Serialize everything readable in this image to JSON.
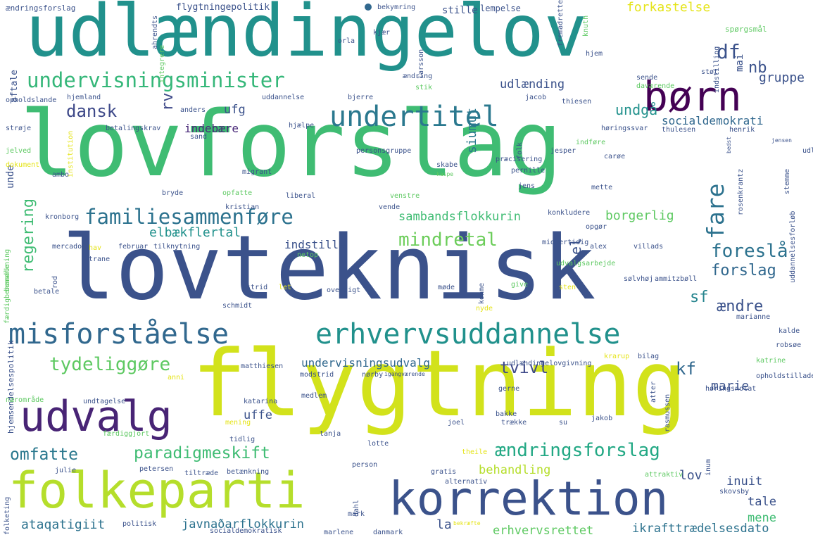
{
  "palette": [
    "#440154",
    "#3b528b",
    "#21918c",
    "#5ec962",
    "#fde725"
  ],
  "words": [
    {
      "text": "udlændingelov",
      "color": "#21918c"
    },
    {
      "text": "lovforslag",
      "color": "#3fbc73"
    },
    {
      "text": "lovteknisk",
      "color": "#3b528b"
    },
    {
      "text": "flygtning",
      "color": "#d2e21b"
    },
    {
      "text": "børn",
      "color": "#440154"
    },
    {
      "text": "korrektion",
      "color": "#3b528b"
    },
    {
      "text": "folkeparti",
      "color": "#b5de2b"
    },
    {
      "text": "udvalg",
      "color": "#482475"
    },
    {
      "text": "misforståelse",
      "color": "#31688e"
    },
    {
      "text": "erhvervsuddannelse",
      "color": "#21918c"
    },
    {
      "text": "undervisningsminister",
      "color": "#35b779"
    },
    {
      "text": "undertitel",
      "color": "#2a788e"
    },
    {
      "text": "familiesammenføre",
      "color": "#2c728e"
    },
    {
      "text": "fare",
      "color": "#2c728e"
    },
    {
      "text": "dansk",
      "color": "#3e4989"
    },
    {
      "text": "undgå",
      "color": "#21918c"
    },
    {
      "text": "df",
      "color": "#3b528b"
    },
    {
      "text": "nb",
      "color": "#3b528b"
    },
    {
      "text": "mindretal",
      "color": "#6ccd5a"
    },
    {
      "text": "foreslå",
      "color": "#2c728e"
    },
    {
      "text": "forslag",
      "color": "#31688e"
    },
    {
      "text": "tydeliggøre",
      "color": "#5ec962"
    },
    {
      "text": "paradigmeskift",
      "color": "#3fbc73"
    },
    {
      "text": "ændringsforslag",
      "color": "#22a884"
    },
    {
      "text": "omfatte",
      "color": "#2a788e"
    },
    {
      "text": "tvivl",
      "color": "#3e4989"
    },
    {
      "text": "kf",
      "color": "#31688e"
    },
    {
      "text": "sf",
      "color": "#25848e"
    },
    {
      "text": "ændre",
      "color": "#3b528b"
    },
    {
      "text": "regering",
      "color": "#3fbc73"
    },
    {
      "text": "rv",
      "color": "#3e4989"
    },
    {
      "text": "el",
      "color": "#3b528b"
    },
    {
      "text": "forkastelse",
      "color": "#e5e419"
    },
    {
      "text": "socialdemokrati",
      "color": "#31688e"
    },
    {
      "text": "gruppe",
      "color": "#3b528b"
    },
    {
      "text": "mai",
      "color": "#3b528b"
    },
    {
      "text": "udlænding",
      "color": "#3b528b"
    },
    {
      "text": "ufg",
      "color": "#3b528b"
    },
    {
      "text": "indebære",
      "color": "#482878"
    },
    {
      "text": "siumut",
      "color": "#2a788e"
    },
    {
      "text": "sambandsflokkurin",
      "color": "#3fbc73"
    },
    {
      "text": "borgerlig",
      "color": "#5ec962"
    },
    {
      "text": "elbækflertal",
      "color": "#21918c"
    },
    {
      "text": "indstille",
      "color": "#3b528b"
    },
    {
      "text": "undervisningsudvalg",
      "color": "#31688e"
    },
    {
      "text": "marie",
      "color": "#3b528b"
    },
    {
      "text": "uffe",
      "color": "#3b528b"
    },
    {
      "text": "behandling",
      "color": "#b5de2b"
    },
    {
      "text": "lov",
      "color": "#3b528b"
    },
    {
      "text": "inuit",
      "color": "#3b528b"
    },
    {
      "text": "tale",
      "color": "#3b528b"
    },
    {
      "text": "mene",
      "color": "#3fbc73"
    },
    {
      "text": "ataqatigiit",
      "color": "#2c728e"
    },
    {
      "text": "javnaðarflokkurin",
      "color": "#2c728e"
    },
    {
      "text": "la",
      "color": "#3b528b"
    },
    {
      "text": "erhvervsrettet",
      "color": "#5ec962"
    },
    {
      "text": "ikrafttrædelsesdato",
      "color": "#2c728e"
    },
    {
      "text": "stille",
      "color": "#3b528b"
    },
    {
      "text": "unde",
      "color": "#3b528b"
    },
    {
      "text": "aftale",
      "color": "#3b528b"
    },
    {
      "text": "flygtningepolitik",
      "color": "#3b528b"
    },
    {
      "text": "ændringsforslag",
      "color": "#3b528b"
    },
    {
      "text": "lempelse",
      "color": "#3b528b"
    },
    {
      "text": "bekymring",
      "color": "#3b528b"
    },
    {
      "text": "spørgsmål",
      "color": "#5ec962"
    },
    {
      "text": "ahrendts",
      "color": "#3b528b"
    },
    {
      "text": "integrere",
      "color": "#5ec962"
    },
    {
      "text": "orla",
      "color": "#3b528b"
    },
    {
      "text": "kjær",
      "color": "#3b528b"
    },
    {
      "text": "larsson",
      "color": "#3b528b"
    },
    {
      "text": "fremadrettet",
      "color": "#3b528b"
    },
    {
      "text": "knuth",
      "color": "#5ec962"
    },
    {
      "text": "hjem",
      "color": "#3b528b"
    },
    {
      "text": "sende",
      "color": "#3b528b"
    },
    {
      "text": "støt",
      "color": "#3b528b"
    },
    {
      "text": "indstilling",
      "color": "#3b528b"
    },
    {
      "text": "daværende",
      "color": "#5ec962"
    },
    {
      "text": "opholdslande",
      "color": "#3b528b"
    },
    {
      "text": "hjemland",
      "color": "#3b528b"
    },
    {
      "text": "uddannelse",
      "color": "#3b528b"
    },
    {
      "text": "bjerre",
      "color": "#3b528b"
    },
    {
      "text": "ændring",
      "color": "#3b528b"
    },
    {
      "text": "stik",
      "color": "#5ec962"
    },
    {
      "text": "jacob",
      "color": "#3b528b"
    },
    {
      "text": "thiesen",
      "color": "#3b528b"
    },
    {
      "text": "anders",
      "color": "#3b528b"
    },
    {
      "text": "strøje",
      "color": "#3b528b"
    },
    {
      "text": "betalingskrav",
      "color": "#3b528b"
    },
    {
      "text": "hjælpe",
      "color": "#3b528b"
    },
    {
      "text": "institution",
      "color": "#e5e419"
    },
    {
      "text": "sand",
      "color": "#3b528b"
    },
    {
      "text": "høringssvar",
      "color": "#3b528b"
    },
    {
      "text": "thulesen",
      "color": "#3b528b"
    },
    {
      "text": "henrik",
      "color": "#3b528b"
    },
    {
      "text": "jelved",
      "color": "#5ec962"
    },
    {
      "text": "dokument",
      "color": "#e5e419"
    },
    {
      "text": "ambo",
      "color": "#3b528b"
    },
    {
      "text": "migrant",
      "color": "#3b528b"
    },
    {
      "text": "folk",
      "color": "#3b528b"
    },
    {
      "text": "jesper",
      "color": "#3b528b"
    },
    {
      "text": "indføre",
      "color": "#5ec962"
    },
    {
      "text": "bedst",
      "color": "#3b528b"
    },
    {
      "text": "jensen",
      "color": "#3b528b"
    },
    {
      "text": "personsgruppe",
      "color": "#3b528b"
    },
    {
      "text": "skabe",
      "color": "#3b528b"
    },
    {
      "text": "kaspe",
      "color": "#5ec962"
    },
    {
      "text": "præcisering",
      "color": "#3b528b"
    },
    {
      "text": "pernille",
      "color": "#3b528b"
    },
    {
      "text": "carøe",
      "color": "#3b528b"
    },
    {
      "text": "udlændingelovforslag",
      "color": "#3b528b"
    },
    {
      "text": "bryde",
      "color": "#3b528b"
    },
    {
      "text": "opfatte",
      "color": "#5ec962"
    },
    {
      "text": "liberal",
      "color": "#3b528b"
    },
    {
      "text": "jens",
      "color": "#3b528b"
    },
    {
      "text": "mette",
      "color": "#3b528b"
    },
    {
      "text": "stemme",
      "color": "#3b528b"
    },
    {
      "text": "kristian",
      "color": "#3b528b"
    },
    {
      "text": "venstre",
      "color": "#5ec962"
    },
    {
      "text": "vende",
      "color": "#3b528b"
    },
    {
      "text": "konkludere",
      "color": "#3b528b"
    },
    {
      "text": "rosenkrantz",
      "color": "#3b528b"
    },
    {
      "text": "uddannelsesforløb",
      "color": "#3b528b"
    },
    {
      "text": "kronborg",
      "color": "#3b528b"
    },
    {
      "text": "opgør",
      "color": "#3b528b"
    },
    {
      "text": "bemærkning",
      "color": "#5ec962"
    },
    {
      "text": "mercado",
      "color": "#3b528b"
    },
    {
      "text": "februar",
      "color": "#3b528b"
    },
    {
      "text": "tilknytning",
      "color": "#3b528b"
    },
    {
      "text": "alex",
      "color": "#3b528b"
    },
    {
      "text": "villads",
      "color": "#3b528b"
    },
    {
      "text": "hav",
      "color": "#e5e419"
    },
    {
      "text": "trane",
      "color": "#3b528b"
    },
    {
      "text": "netop",
      "color": "#5ec962"
    },
    {
      "text": "rod",
      "color": "#3b528b"
    },
    {
      "text": "midlertidig",
      "color": "#3b528b"
    },
    {
      "text": "udvalgsarbejde",
      "color": "#5ec962"
    },
    {
      "text": "sølvhøj",
      "color": "#3b528b"
    },
    {
      "text": "ammitzbøll",
      "color": "#3b528b"
    },
    {
      "text": "færdigbehandle",
      "color": "#5ec962"
    },
    {
      "text": "betale",
      "color": "#3b528b"
    },
    {
      "text": "astrid",
      "color": "#3b528b"
    },
    {
      "text": "let",
      "color": "#e5e419"
    },
    {
      "text": "oversigt",
      "color": "#3b528b"
    },
    {
      "text": "møde",
      "color": "#3b528b"
    },
    {
      "text": "give",
      "color": "#5ec962"
    },
    {
      "text": "sten",
      "color": "#e5e419"
    },
    {
      "text": "schmidt",
      "color": "#3b528b"
    },
    {
      "text": "konme",
      "color": "#3b528b"
    },
    {
      "text": "nyde",
      "color": "#e5e419"
    },
    {
      "text": "marianne",
      "color": "#3b528b"
    },
    {
      "text": "kalde",
      "color": "#3b528b"
    },
    {
      "text": "robsøe",
      "color": "#3b528b"
    },
    {
      "text": "hjemsendelsespolitik",
      "color": "#3b528b"
    },
    {
      "text": "matthiesen",
      "color": "#3b528b"
    },
    {
      "text": "anni",
      "color": "#e5e419"
    },
    {
      "text": "modstrid",
      "color": "#3b528b"
    },
    {
      "text": "nørby",
      "color": "#3b528b"
    },
    {
      "text": "igangværende",
      "color": "#3b528b"
    },
    {
      "text": "krarup",
      "color": "#e5e419"
    },
    {
      "text": "udlændingelovgivning",
      "color": "#3b528b"
    },
    {
      "text": "bilag",
      "color": "#3b528b"
    },
    {
      "text": "katrine",
      "color": "#5ec962"
    },
    {
      "text": "nærområde",
      "color": "#5ec962"
    },
    {
      "text": "undtagelse",
      "color": "#3b528b"
    },
    {
      "text": "katarina",
      "color": "#3b528b"
    },
    {
      "text": "medlem",
      "color": "#3b528b"
    },
    {
      "text": "atter",
      "color": "#3b528b"
    },
    {
      "text": "rasmussen",
      "color": "#3b528b"
    },
    {
      "text": "gerne",
      "color": "#3b528b"
    },
    {
      "text": "høringsnotat",
      "color": "#3b528b"
    },
    {
      "text": "opholdstilladelse",
      "color": "#3b528b"
    },
    {
      "text": "mening",
      "color": "#e5e419"
    },
    {
      "text": "bakke",
      "color": "#3b528b"
    },
    {
      "text": "trække",
      "color": "#3b528b"
    },
    {
      "text": "su",
      "color": "#3b528b"
    },
    {
      "text": "jakob",
      "color": "#3b528b"
    },
    {
      "text": "inum",
      "color": "#3b528b"
    },
    {
      "text": "færdiggjort",
      "color": "#5ec962"
    },
    {
      "text": "tidlig",
      "color": "#3b528b"
    },
    {
      "text": "tanja",
      "color": "#3b528b"
    },
    {
      "text": "joel",
      "color": "#3b528b"
    },
    {
      "text": "lotte",
      "color": "#3b528b"
    },
    {
      "text": "theile",
      "color": "#e5e419"
    },
    {
      "text": "julie",
      "color": "#3b528b"
    },
    {
      "text": "petersen",
      "color": "#3b528b"
    },
    {
      "text": "tiltræde",
      "color": "#3b528b"
    },
    {
      "text": "betænkning",
      "color": "#3b528b"
    },
    {
      "text": "person",
      "color": "#3b528b"
    },
    {
      "text": "gratis",
      "color": "#3b528b"
    },
    {
      "text": "alternativ",
      "color": "#3b528b"
    },
    {
      "text": "attraktiv",
      "color": "#5ec962"
    },
    {
      "text": "skovsby",
      "color": "#3b528b"
    },
    {
      "text": "folketing",
      "color": "#3b528b"
    },
    {
      "text": "politisk",
      "color": "#3b528b"
    },
    {
      "text": "dahl",
      "color": "#3b528b"
    },
    {
      "text": "mark",
      "color": "#3b528b"
    },
    {
      "text": "bekræfte",
      "color": "#e5e419"
    },
    {
      "text": "socialdemokratisk",
      "color": "#3b528b"
    },
    {
      "text": "marlene",
      "color": "#3b528b"
    },
    {
      "text": "danmark",
      "color": "#3b528b"
    }
  ]
}
